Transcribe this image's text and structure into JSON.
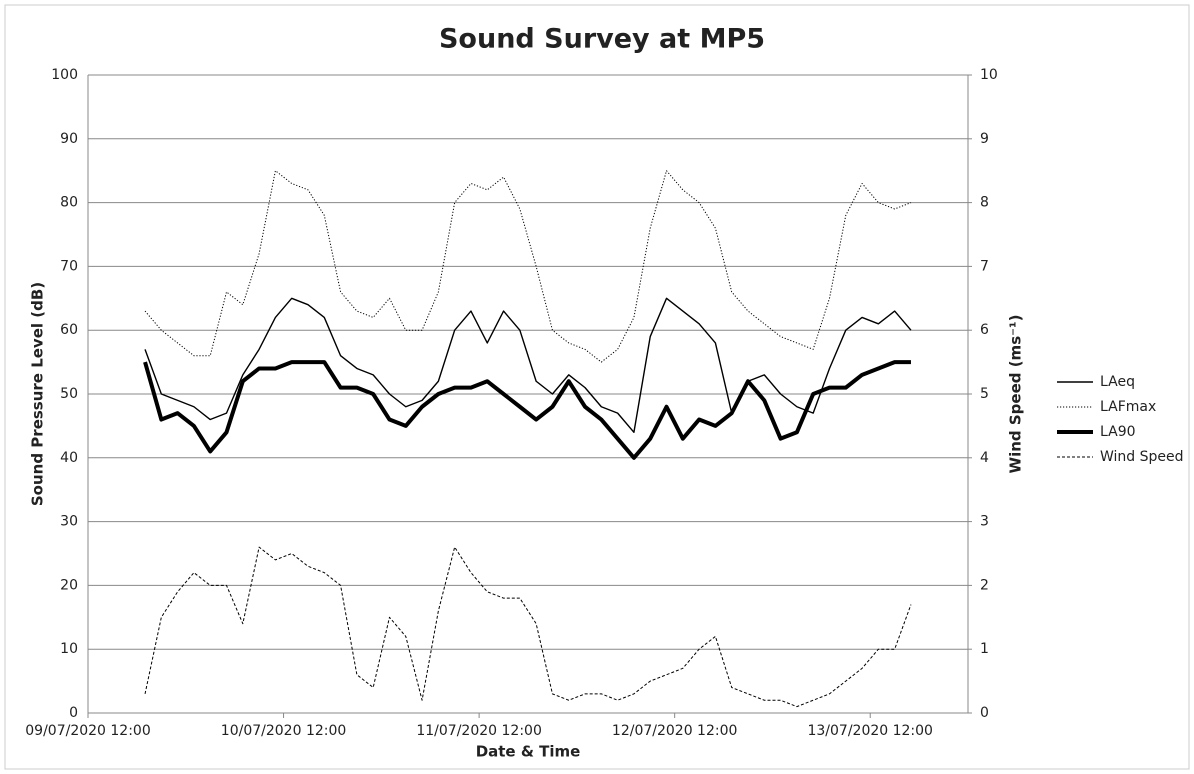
{
  "chart_data": {
    "type": "line",
    "title": "Sound Survey at MP5",
    "x_label": "Date & Time",
    "y_label": "Sound Pressure Level (dB)",
    "y2_label": "Wind Speed (ms⁻¹)",
    "x": [
      "2020-07-09T19:00",
      "2020-07-09T21:00",
      "2020-07-09T23:00",
      "2020-07-10T01:00",
      "2020-07-10T03:00",
      "2020-07-10T05:00",
      "2020-07-10T07:00",
      "2020-07-10T09:00",
      "2020-07-10T11:00",
      "2020-07-10T13:00",
      "2020-07-10T15:00",
      "2020-07-10T17:00",
      "2020-07-10T19:00",
      "2020-07-10T21:00",
      "2020-07-10T23:00",
      "2020-07-11T01:00",
      "2020-07-11T03:00",
      "2020-07-11T05:00",
      "2020-07-11T07:00",
      "2020-07-11T09:00",
      "2020-07-11T11:00",
      "2020-07-11T13:00",
      "2020-07-11T15:00",
      "2020-07-11T17:00",
      "2020-07-11T19:00",
      "2020-07-11T21:00",
      "2020-07-11T23:00",
      "2020-07-12T01:00",
      "2020-07-12T03:00",
      "2020-07-12T05:00",
      "2020-07-12T07:00",
      "2020-07-12T09:00",
      "2020-07-12T11:00",
      "2020-07-12T13:00",
      "2020-07-12T15:00",
      "2020-07-12T17:00",
      "2020-07-12T19:00",
      "2020-07-12T21:00",
      "2020-07-12T23:00",
      "2020-07-13T01:00",
      "2020-07-13T03:00",
      "2020-07-13T05:00",
      "2020-07-13T07:00",
      "2020-07-13T09:00",
      "2020-07-13T11:00",
      "2020-07-13T13:00",
      "2020-07-13T15:00",
      "2020-07-13T17:00"
    ],
    "xlim": [
      "2020-07-09T12:00",
      "2020-07-14T00:00"
    ],
    "xticks": [
      {
        "value": "2020-07-09T12:00",
        "label": "09/07/2020 12:00"
      },
      {
        "value": "2020-07-10T12:00",
        "label": "10/07/2020 12:00"
      },
      {
        "value": "2020-07-11T12:00",
        "label": "11/07/2020 12:00"
      },
      {
        "value": "2020-07-12T12:00",
        "label": "12/07/2020 12:00"
      },
      {
        "value": "2020-07-13T12:00",
        "label": "13/07/2020 12:00"
      }
    ],
    "ylim": [
      0,
      100
    ],
    "yticks": [
      0,
      10,
      20,
      30,
      40,
      50,
      60,
      70,
      80,
      90,
      100
    ],
    "y2lim": [
      0,
      10
    ],
    "y2ticks": [
      0,
      1,
      2,
      3,
      4,
      5,
      6,
      7,
      8,
      9,
      10
    ],
    "grid": true,
    "legend": "right",
    "series": [
      {
        "name": "LAeq",
        "color": "#000000",
        "line_style": "solid",
        "line_width": 1.4,
        "values": [
          57,
          50,
          49,
          48,
          46,
          47,
          53,
          57,
          62,
          65,
          64,
          62,
          56,
          54,
          53,
          50,
          48,
          49,
          52,
          60,
          63,
          58,
          63,
          60,
          52,
          50,
          53,
          51,
          48,
          47,
          44,
          59,
          65,
          63,
          61,
          58,
          47,
          52,
          53,
          50,
          48,
          47,
          54,
          60,
          62,
          61,
          63,
          60
        ]
      },
      {
        "name": "LAFmax",
        "color": "#000000",
        "line_style": "dotted",
        "line_width": 1,
        "values": [
          63,
          60,
          58,
          56,
          56,
          66,
          64,
          72,
          85,
          83,
          82,
          78,
          66,
          63,
          62,
          65,
          60,
          60,
          66,
          80,
          83,
          82,
          84,
          79,
          70,
          60,
          58,
          57,
          55,
          57,
          62,
          76,
          85,
          82,
          80,
          76,
          66,
          63,
          61,
          59,
          58,
          57,
          65,
          78,
          83,
          80,
          79,
          80
        ]
      },
      {
        "name": "LA90",
        "color": "#000000",
        "line_style": "solid",
        "line_width": 4,
        "values": [
          55,
          46,
          47,
          45,
          41,
          44,
          52,
          54,
          54,
          55,
          55,
          55,
          51,
          51,
          50,
          46,
          45,
          48,
          50,
          51,
          51,
          52,
          50,
          48,
          46,
          48,
          52,
          48,
          46,
          43,
          40,
          43,
          48,
          43,
          46,
          45,
          47,
          52,
          49,
          43,
          44,
          50,
          51,
          51,
          53,
          54,
          55,
          55
        ]
      },
      {
        "name": "Wind Speed",
        "color": "#000000",
        "line_style": "dashed",
        "line_width": 1,
        "axis": "y2",
        "values": [
          0.3,
          1.5,
          1.9,
          2.2,
          2.0,
          2.0,
          1.4,
          2.6,
          2.4,
          2.5,
          2.3,
          2.2,
          2.0,
          0.6,
          0.4,
          1.5,
          1.2,
          0.2,
          1.6,
          2.6,
          2.2,
          1.9,
          1.8,
          1.8,
          1.4,
          0.3,
          0.2,
          0.3,
          0.3,
          0.2,
          0.3,
          0.5,
          0.6,
          0.7,
          1.0,
          1.2,
          0.4,
          0.3,
          0.2,
          0.2,
          0.1,
          0.2,
          0.3,
          0.5,
          0.7,
          1.0,
          1.0,
          1.7
        ]
      }
    ]
  }
}
